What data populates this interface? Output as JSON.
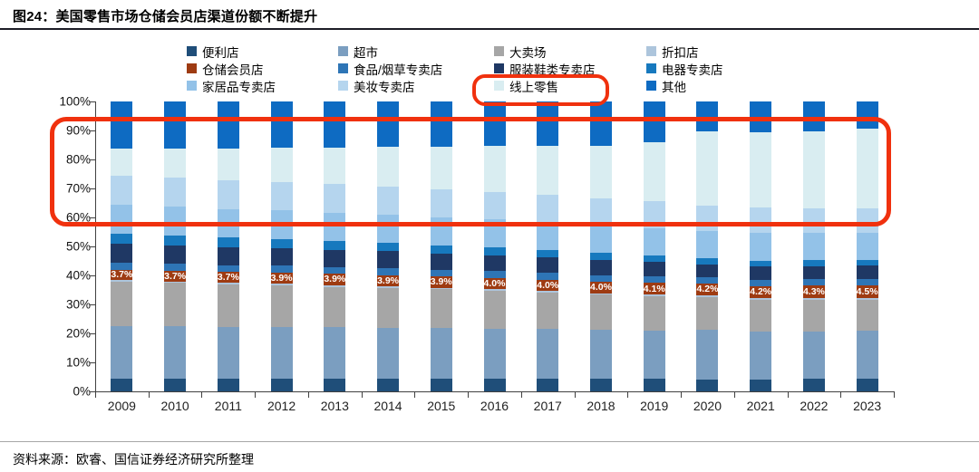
{
  "figure": {
    "title": "图24：美国零售市场仓储会员店渠道份额不断提升",
    "source": "资料来源：欧睿、国信证券经济研究所整理"
  },
  "chart_data": {
    "type": "bar",
    "stacked": true,
    "unit": "%",
    "title": "图24：美国零售市场仓储会员店渠道份额不断提升",
    "xlabel": "",
    "ylabel": "",
    "ylim": [
      0,
      100
    ],
    "grid": false,
    "legend_position": "top",
    "yticks": [
      "0%",
      "10%",
      "20%",
      "30%",
      "40%",
      "50%",
      "60%",
      "70%",
      "80%",
      "90%",
      "100%"
    ],
    "categories": [
      "2009",
      "2010",
      "2011",
      "2012",
      "2013",
      "2014",
      "2015",
      "2016",
      "2017",
      "2018",
      "2019",
      "2020",
      "2021",
      "2022",
      "2023"
    ],
    "series": [
      {
        "name": "便利店",
        "color": "#1F4E79",
        "values": [
          4.5,
          4.5,
          4.5,
          4.5,
          4.5,
          4.5,
          4.4,
          4.5,
          4.5,
          4.4,
          4.4,
          4.2,
          4.2,
          4.3,
          4.4
        ]
      },
      {
        "name": "超市",
        "color": "#7B9EC0",
        "values": [
          18.0,
          17.9,
          17.8,
          17.7,
          17.6,
          17.5,
          17.4,
          17.2,
          17.0,
          16.8,
          16.6,
          16.9,
          16.3,
          16.4,
          16.5
        ]
      },
      {
        "name": "大卖场",
        "color": "#A6A6A6",
        "values": [
          15.3,
          15.0,
          14.7,
          14.4,
          14.0,
          13.7,
          13.4,
          13.0,
          12.6,
          12.2,
          11.8,
          11.5,
          11.2,
          11.0,
          10.7
        ]
      },
      {
        "name": "折扣店",
        "color": "#ADC5DC",
        "values": [
          0.5,
          0.5,
          0.5,
          0.5,
          0.5,
          0.5,
          0.5,
          0.5,
          0.5,
          0.5,
          0.5,
          0.5,
          0.5,
          0.5,
          0.5
        ]
      },
      {
        "name": "仓储会员店",
        "color": "#9E3B12",
        "data_labels": true,
        "values": [
          3.7,
          3.7,
          3.7,
          3.9,
          3.9,
          3.9,
          3.9,
          4.0,
          4.0,
          4.0,
          4.1,
          4.2,
          4.2,
          4.3,
          4.5
        ]
      },
      {
        "name": "食品/烟草专卖店",
        "color": "#2E75B6",
        "values": [
          2.5,
          2.5,
          2.4,
          2.4,
          2.4,
          2.3,
          2.3,
          2.3,
          2.2,
          2.2,
          2.2,
          2.1,
          2.1,
          2.2,
          2.2
        ]
      },
      {
        "name": "服装鞋类专卖店",
        "color": "#1F3864",
        "values": [
          6.4,
          6.3,
          6.2,
          6.1,
          6.0,
          5.9,
          5.7,
          5.5,
          5.4,
          5.2,
          5.0,
          4.3,
          4.6,
          4.6,
          4.6
        ]
      },
      {
        "name": "电器专卖店",
        "color": "#1779BE",
        "values": [
          3.5,
          3.4,
          3.2,
          3.1,
          3.0,
          2.9,
          2.8,
          2.7,
          2.6,
          2.4,
          2.3,
          2.1,
          2.0,
          1.9,
          1.9
        ]
      },
      {
        "name": "家居品专卖店",
        "color": "#93C2E8",
        "values": [
          10.0,
          9.9,
          9.9,
          9.8,
          9.8,
          9.7,
          9.7,
          9.6,
          9.6,
          9.5,
          9.5,
          9.6,
          9.7,
          9.5,
          9.4
        ]
      },
      {
        "name": "美妆专卖店",
        "color": "#B5D5EE",
        "values": [
          10.0,
          10.0,
          9.9,
          9.9,
          9.8,
          9.8,
          9.7,
          9.6,
          9.5,
          9.4,
          9.2,
          8.8,
          8.7,
          8.5,
          8.4
        ]
      },
      {
        "name": "线上零售",
        "color": "#D9EDF1",
        "highlighted": true,
        "values": [
          9.5,
          10.2,
          11.0,
          11.8,
          12.7,
          13.6,
          14.6,
          15.7,
          16.9,
          18.2,
          20.5,
          25.5,
          26.0,
          26.5,
          27.5
        ]
      },
      {
        "name": "其他",
        "color": "#0E6BC2",
        "values": [
          16.1,
          16.1,
          16.2,
          15.9,
          15.8,
          15.7,
          15.6,
          15.4,
          15.2,
          15.2,
          13.9,
          10.3,
          10.5,
          10.3,
          9.4
        ]
      }
    ],
    "data_label_format": "#.#%",
    "annotations": [
      {
        "type": "rect",
        "color": "#f0310e",
        "target": "线上零售 legend entry"
      },
      {
        "type": "rect",
        "color": "#f0310e",
        "target": "线上零售 stacked segments, all years (~60%–94% band)"
      }
    ]
  }
}
